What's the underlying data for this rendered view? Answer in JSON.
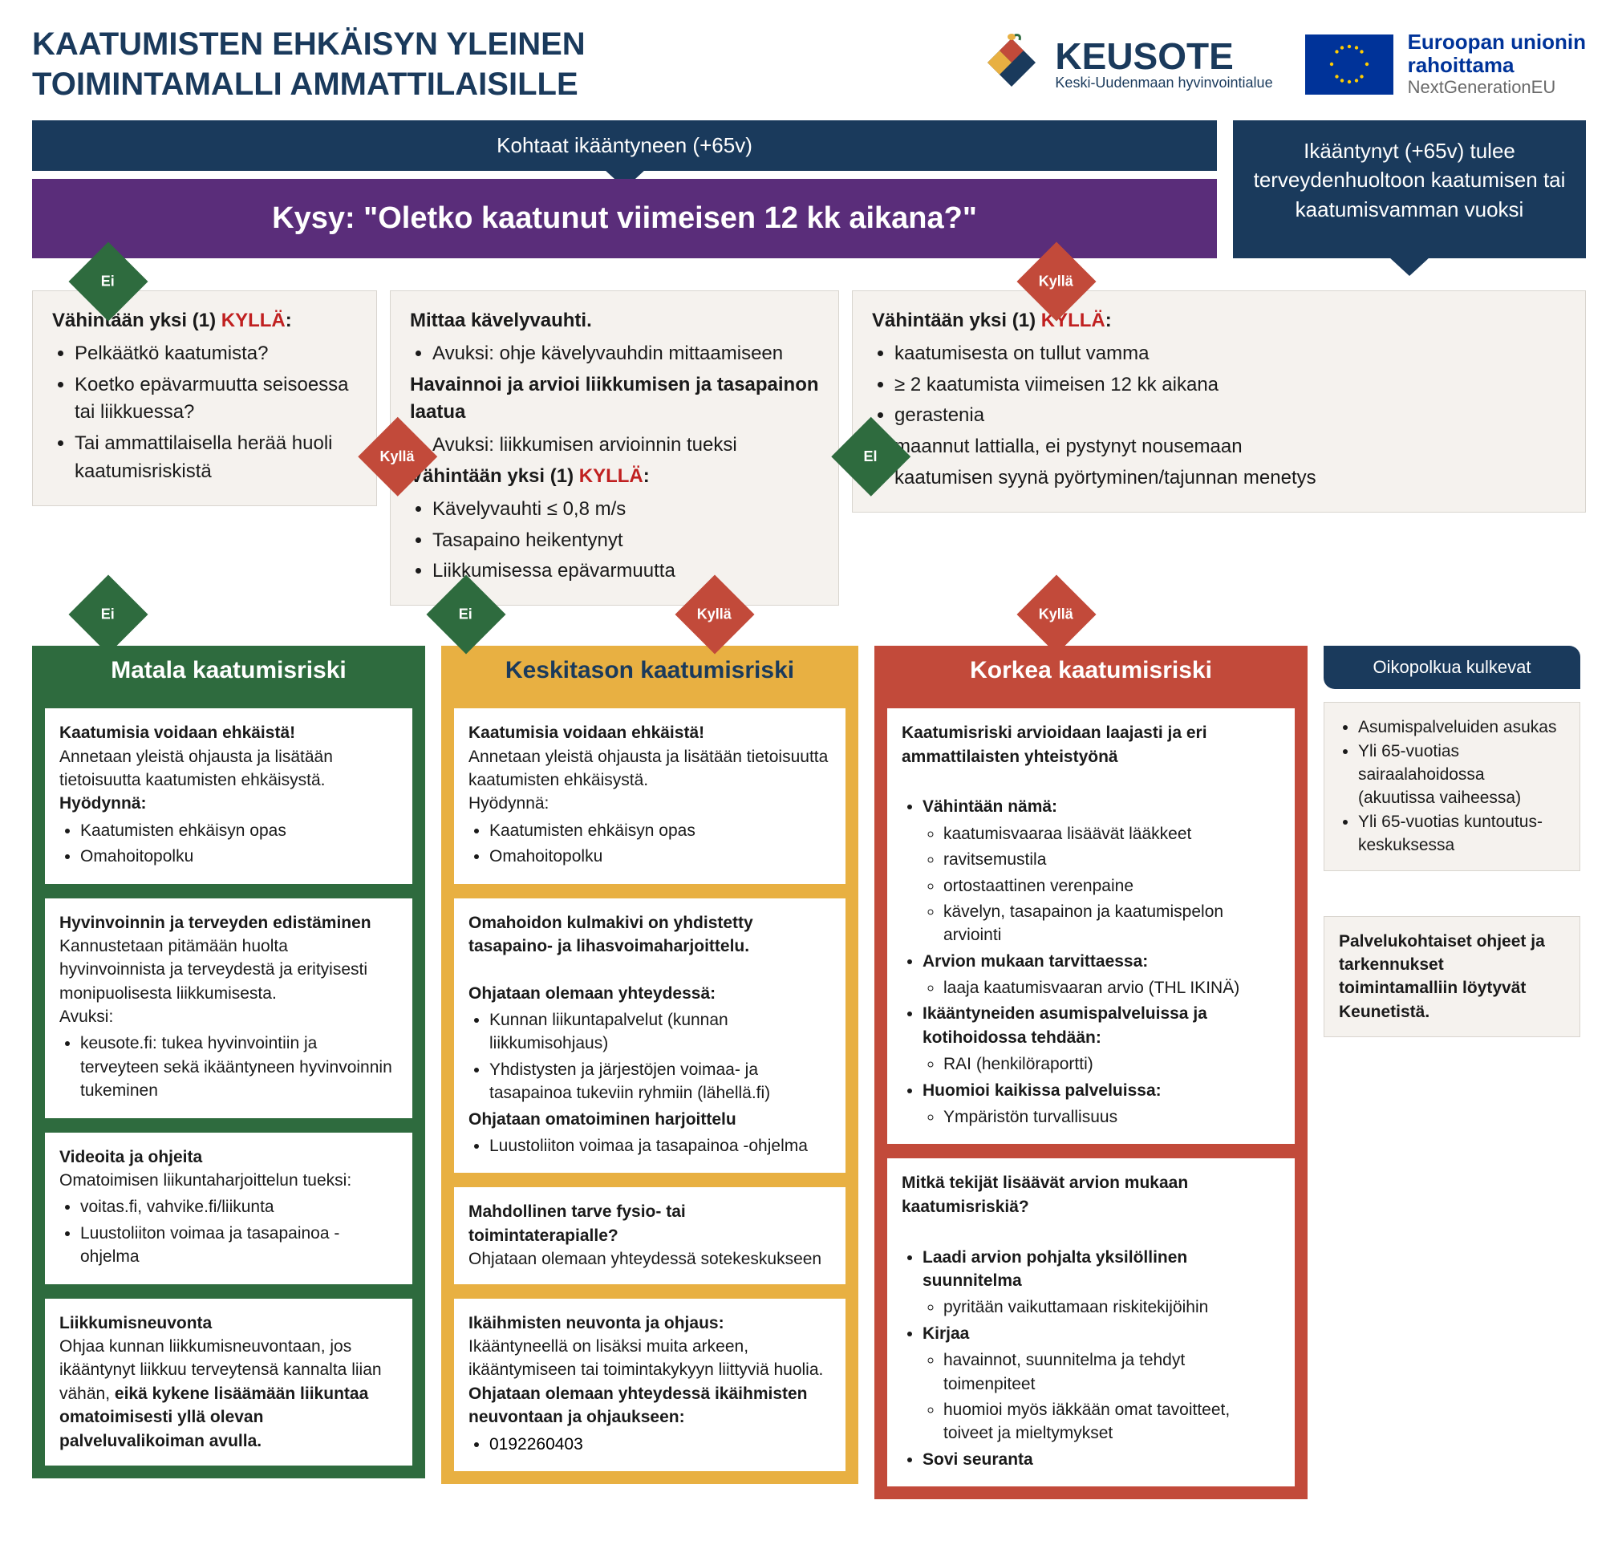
{
  "colors": {
    "navy": "#1a3a5c",
    "purple": "#5a2d7a",
    "green": "#2e6b3e",
    "yellow": "#e8b042",
    "red": "#c24a3a",
    "lightbox": "#f5f2ee",
    "euBlue": "#003399",
    "kyllaText": "#c02020"
  },
  "header": {
    "title": "KAATUMISTEN EHKÄISYN YLEINEN TOIMINTAMALLI AMMATTILAISILLE",
    "keusote": {
      "name": "KEUSOTE",
      "sub": "Keski-Uudenmaan hyvinvointialue"
    },
    "eu": {
      "line1a": "Euroopan unionin",
      "line1b": "rahoittama",
      "line2": "NextGenerationEU"
    }
  },
  "top": {
    "encounter": "Kohtaat ikääntyneen (+65v)",
    "question": "Kysy: \"Oletko kaatunut viimeisen 12 kk aikana?\"",
    "rightEntry": "Ikääntynyt (+65v) tulee terveydenhuoltoon kaatumisen tai kaatumisvamman vuoksi"
  },
  "labels": {
    "ei": "Ei",
    "kylla": "Kyllä",
    "el": "El"
  },
  "decision": {
    "leftTitle": "Vähintään yksi (1) ",
    "leftItems": [
      "Pelkäätkö kaatumista?",
      "Koetko epävarmuutta seisoessa tai liikkuessa?",
      "Tai ammattilaisella herää huoli kaatumisriskistä"
    ],
    "midLine1": "Mittaa kävelyvauhti.",
    "midBullet1": "Avuksi: ohje kävelyvauhdin mittaamiseen",
    "midLine2": "Havainnoi ja arvioi liikkumisen ja tasapainon laatua",
    "midBullet2": "Avuksi: liikkumisen arvioinnin tueksi",
    "midLine3": "Vähintään yksi (1) ",
    "midItems": [
      "Kävelyvauhti ≤ 0,8 m/s",
      "Tasapaino heikentynyt",
      "Liikkumisessa epävarmuutta"
    ],
    "rightTitle": "Vähintään yksi (1) ",
    "rightItems": [
      "kaatumisesta on tullut vamma",
      "≥ 2 kaatumista viimeisen 12 kk aikana",
      "gerastenia",
      "maannut lattialla, ei pystynyt nousemaan",
      "kaatumisen syynä pyörtyminen/tajunnan menetys"
    ]
  },
  "risk": {
    "low": {
      "title": "Matala kaatumisriski",
      "cards": [
        {
          "heading": "Kaatumisia voidaan ehkäistä!",
          "text": "Annetaan yleistä ohjausta ja lisätään tietoisuutta kaatumisten ehkäisystä.",
          "sub": "Hyödynnä:",
          "items": [
            "Kaatumisten ehkäisyn opas",
            "Omahoitopolku"
          ]
        },
        {
          "heading": "Hyvinvoinnin ja terveyden edistäminen",
          "text": "Kannustetaan pitämään huolta hyvinvoinnista ja terveydestä ja erityisesti monipuolisesta liikkumisesta.",
          "sub": "Avuksi:",
          "items": [
            "keusote.fi: tukea hyvinvointiin ja terveyteen sekä ikääntyneen hyvinvoinnin tukeminen"
          ]
        },
        {
          "heading": "Videoita ja ohjeita",
          "text": "Omatoimisen liikuntaharjoittelun tueksi:",
          "items": [
            "voitas.fi, vahvike.fi/liikunta",
            "Luustoliiton voimaa ja tasapainoa -ohjelma"
          ]
        },
        {
          "heading": "Liikkumisneuvonta",
          "richtext": "Ohjaa kunnan liikkumisneuvontaan, jos ikääntynyt liikkuu terveytensä kannalta liian vähän, <b>eikä kykene lisäämään liikuntaa omatoimisesti yllä olevan palveluvalikoiman avulla.</b>"
        }
      ]
    },
    "mid": {
      "title": "Keskitason kaatumisriski",
      "cards": [
        {
          "heading": "Kaatumisia voidaan ehkäistä!",
          "text": "Annetaan yleistä ohjausta ja lisätään tietoisuutta kaatumisten ehkäisystä.",
          "sub": "Hyödynnä:",
          "items": [
            "Kaatumisten ehkäisyn opas",
            "Omahoitopolku"
          ]
        },
        {
          "heading": "Omahoidon kulmakivi on yhdistetty tasapaino- ja lihasvoimaharjoittelu.",
          "sections": [
            {
              "sub": "Ohjataan olemaan yhteydessä:",
              "items": [
                "Kunnan liikuntapalvelut (kunnan liikkumisohjaus)",
                "Yhdistysten ja järjestöjen voimaa- ja tasapainoa tukeviin ryhmiin (lähellä.fi)"
              ]
            },
            {
              "sub": "Ohjataan omatoiminen harjoittelu",
              "items": [
                "Luustoliiton voimaa ja tasapainoa -ohjelma"
              ]
            }
          ]
        },
        {
          "heading": "Mahdollinen tarve fysio- tai toimintaterapialle?",
          "text": "Ohjataan olemaan yhteydessä sotekeskukseen"
        },
        {
          "heading": "Ikäihmisten neuvonta ja ohjaus:",
          "text": "Ikääntyneellä on lisäksi muita arkeen, ikääntymiseen tai toimintakykyyn liittyviä huolia.",
          "sub": "Ohjataan olemaan yhteydessä ikäihmisten neuvontaan ja ohjaukseen:",
          "phone": "0192260403"
        }
      ]
    },
    "high": {
      "title": "Korkea kaatumisriski",
      "card1": {
        "heading": "Kaatumisriski arvioidaan laajasti ja eri ammattilaisten yhteistyönä",
        "group1label": "Vähintään nämä:",
        "group1": [
          "kaatumisvaaraa lisäävät lääkkeet",
          "ravitsemustila",
          "ortostaattinen verenpaine",
          "kävelyn, tasapainon ja kaatumispelon arviointi"
        ],
        "group2label": "Arvion mukaan tarvittaessa:",
        "group2": [
          "laaja kaatumisvaaran arvio (THL IKINÄ)"
        ],
        "group3label": "Ikääntyneiden asumispalveluissa ja kotihoidossa tehdään:",
        "group3": [
          "RAI (henkilöraportti)"
        ],
        "group4label": "Huomioi kaikissa palveluissa:",
        "group4": [
          "Ympäristön turvallisuus"
        ]
      },
      "card2": {
        "heading": "Mitkä tekijät lisäävät arvion mukaan kaatumisriskiä?",
        "b1": "Laadi arvion pohjalta yksilöllinen suunnitelma",
        "b1sub": [
          "pyritään vaikuttamaan riskitekijöihin"
        ],
        "b2": "Kirjaa",
        "b2sub": [
          "havainnot, suunnitelma ja tehdyt toimenpiteet",
          "huomioi myös iäkkään omat tavoitteet, toiveet ja mieltymykset"
        ],
        "b3": "Sovi seuranta"
      }
    }
  },
  "side": {
    "title": "Oikopolkua kulkevat",
    "items": [
      "Asumispalveluiden asukas",
      "Yli 65-vuotias sairaalahoidossa (akuutissa vaiheessa)",
      "Yli 65-vuotias kuntoutus-keskuksessa"
    ],
    "note": "Palvelukohtaiset ohjeet ja tarkennukset toimintamalliin löytyvät Keunetistä."
  }
}
